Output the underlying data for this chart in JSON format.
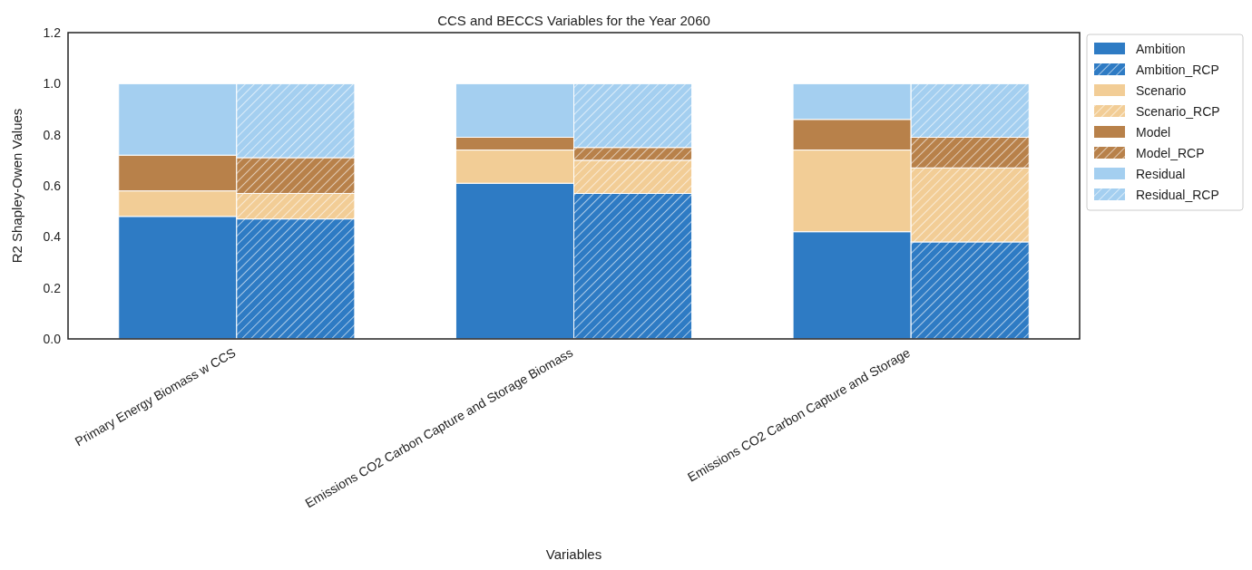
{
  "chart_data": {
    "type": "bar",
    "title": "CCS and BECCS Variables for the Year 2060",
    "xlabel": "Variables",
    "ylabel": "R2 Shapley-Owen Values",
    "categories": [
      "Primary Energy Biomass w CCS",
      null,
      "Emissions CO2 Carbon Capture and Storage Biomass",
      null,
      "Emissions CO2 Carbon Capture and Storage",
      null
    ],
    "stacked": true,
    "ylim": [
      0,
      1.2
    ],
    "yticks": [
      {
        "value": 0,
        "label": "0.0"
      },
      {
        "value": 0.2,
        "label": "0.2"
      },
      {
        "value": 0.4,
        "label": "0.4"
      },
      {
        "value": 0.6,
        "label": "0.6"
      },
      {
        "value": 0.8,
        "label": "0.8"
      },
      {
        "value": 1.0,
        "label": "1.0"
      },
      {
        "value": 1.2,
        "label": "1.2"
      }
    ],
    "grid": false,
    "legend": "top right",
    "series": [
      {
        "name": "Ambition",
        "color": "#2e7bc4",
        "values": [
          0.48,
          null,
          0.61,
          null,
          0.42,
          null
        ]
      },
      {
        "name": "Ambition_RCP",
        "color": "#2e7bc4",
        "values": [
          null,
          0.47,
          null,
          0.57,
          null,
          0.38
        ]
      },
      {
        "name": "Scenario",
        "color": "#f2cd96",
        "values": [
          0.1,
          null,
          0.13,
          null,
          0.32,
          null
        ]
      },
      {
        "name": "Scenario_RCP",
        "color": "#f2cd96",
        "values": [
          null,
          0.1,
          null,
          0.13,
          null,
          0.29
        ]
      },
      {
        "name": "Model",
        "color": "#b8814a",
        "values": [
          0.14,
          null,
          0.05,
          null,
          0.12,
          null
        ]
      },
      {
        "name": "Model_RCP",
        "color": "#b8814a",
        "values": [
          null,
          0.14,
          null,
          0.05,
          null,
          0.12
        ]
      },
      {
        "name": "Residual",
        "color": "#a4cff0",
        "values": [
          0.28,
          null,
          0.21,
          null,
          0.14,
          null
        ]
      },
      {
        "name": "Residual_RCP",
        "color": "#a4cff0",
        "values": [
          null,
          0.29,
          null,
          0.25,
          null,
          0.21
        ]
      }
    ]
  }
}
